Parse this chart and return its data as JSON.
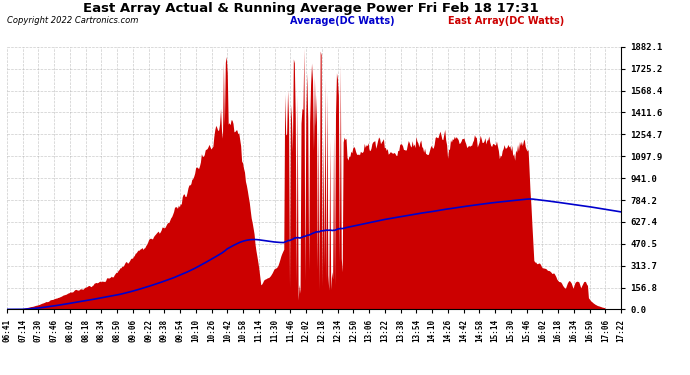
{
  "title": "East Array Actual & Running Average Power Fri Feb 18 17:31",
  "copyright": "Copyright 2022 Cartronics.com",
  "legend_avg": "Average(DC Watts)",
  "legend_east": "East Array(DC Watts)",
  "ylabel_values": [
    1882.1,
    1725.2,
    1568.4,
    1411.6,
    1254.7,
    1097.9,
    941.0,
    784.2,
    627.4,
    470.5,
    313.7,
    156.8,
    0.0
  ],
  "ymax": 1882.1,
  "ymin": 0.0,
  "fill_color": "#cc0000",
  "avg_line_color": "#0000cc",
  "background_color": "#ffffff",
  "grid_color": "#aaaaaa",
  "title_color": "#000000",
  "copyright_color": "#000000",
  "legend_avg_color": "#0000cc",
  "legend_east_color": "#cc0000",
  "x_labels": [
    "06:41",
    "07:14",
    "07:30",
    "07:46",
    "08:02",
    "08:18",
    "08:34",
    "08:50",
    "09:06",
    "09:22",
    "09:38",
    "09:54",
    "10:10",
    "10:26",
    "10:42",
    "10:58",
    "11:14",
    "11:30",
    "11:46",
    "12:02",
    "12:18",
    "12:34",
    "12:50",
    "13:06",
    "13:22",
    "13:38",
    "13:54",
    "14:10",
    "14:26",
    "14:42",
    "14:58",
    "15:14",
    "15:30",
    "15:46",
    "16:02",
    "16:18",
    "16:34",
    "16:50",
    "17:06",
    "17:22"
  ]
}
